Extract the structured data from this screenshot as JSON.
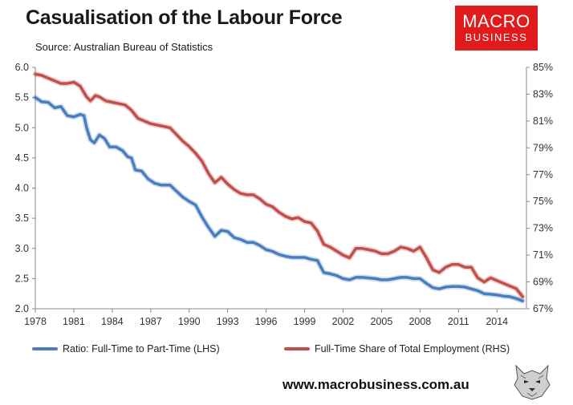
{
  "header": {
    "title": "Casualisation of the Labour Force",
    "source": "Source: Australian Bureau of Statistics"
  },
  "logo": {
    "line1": "MACRO",
    "line2": "BUSINESS",
    "color": "#e01b1b"
  },
  "footer": {
    "website": "www.macrobusiness.com.au",
    "mascot_icon": "wolf-icon"
  },
  "chart_data": {
    "type": "line",
    "title": "Casualisation of the Labour Force",
    "categories_label": "Year",
    "x_ticks": [
      "1978",
      "1981",
      "1984",
      "1987",
      "1990",
      "1993",
      "1996",
      "1999",
      "2002",
      "2005",
      "2008",
      "2011",
      "2014"
    ],
    "x_range": [
      1978,
      2016.3
    ],
    "y_left": {
      "range": [
        2.0,
        6.0
      ],
      "ticks": [
        "2.0",
        "2.5",
        "3.0",
        "3.5",
        "4.0",
        "4.5",
        "5.0",
        "5.5",
        "6.0"
      ]
    },
    "y_right": {
      "range": [
        67,
        85
      ],
      "ticks": [
        "67%",
        "69%",
        "71%",
        "73%",
        "75%",
        "77%",
        "79%",
        "81%",
        "83%",
        "85%"
      ]
    },
    "grid": false,
    "legend_position": "bottom",
    "series": [
      {
        "name": "Ratio: Full-Time to Part-Time (LHS)",
        "axis": "left",
        "color": "#4a7ebb",
        "points": [
          [
            1978.0,
            5.5
          ],
          [
            1978.5,
            5.43
          ],
          [
            1979.0,
            5.42
          ],
          [
            1979.5,
            5.33
          ],
          [
            1980.0,
            5.35
          ],
          [
            1980.5,
            5.2
          ],
          [
            1981.0,
            5.18
          ],
          [
            1981.5,
            5.22
          ],
          [
            1981.8,
            5.2
          ],
          [
            1982.0,
            5.0
          ],
          [
            1982.3,
            4.8
          ],
          [
            1982.6,
            4.75
          ],
          [
            1983.0,
            4.88
          ],
          [
            1983.4,
            4.82
          ],
          [
            1983.8,
            4.68
          ],
          [
            1984.3,
            4.68
          ],
          [
            1984.8,
            4.62
          ],
          [
            1985.2,
            4.52
          ],
          [
            1985.5,
            4.5
          ],
          [
            1985.8,
            4.3
          ],
          [
            1986.3,
            4.28
          ],
          [
            1986.8,
            4.15
          ],
          [
            1987.3,
            4.08
          ],
          [
            1987.8,
            4.05
          ],
          [
            1988.5,
            4.05
          ],
          [
            1989.0,
            3.95
          ],
          [
            1989.5,
            3.85
          ],
          [
            1990.0,
            3.78
          ],
          [
            1990.5,
            3.72
          ],
          [
            1991.0,
            3.52
          ],
          [
            1991.5,
            3.35
          ],
          [
            1992.0,
            3.2
          ],
          [
            1992.5,
            3.3
          ],
          [
            1993.0,
            3.28
          ],
          [
            1993.5,
            3.18
          ],
          [
            1994.0,
            3.15
          ],
          [
            1994.5,
            3.1
          ],
          [
            1995.0,
            3.1
          ],
          [
            1995.5,
            3.05
          ],
          [
            1996.0,
            2.98
          ],
          [
            1996.5,
            2.95
          ],
          [
            1997.0,
            2.9
          ],
          [
            1997.5,
            2.87
          ],
          [
            1998.0,
            2.85
          ],
          [
            1998.5,
            2.85
          ],
          [
            1999.0,
            2.85
          ],
          [
            1999.5,
            2.82
          ],
          [
            2000.0,
            2.8
          ],
          [
            2000.5,
            2.6
          ],
          [
            2001.0,
            2.58
          ],
          [
            2001.5,
            2.55
          ],
          [
            2002.0,
            2.5
          ],
          [
            2002.5,
            2.48
          ],
          [
            2003.0,
            2.52
          ],
          [
            2003.5,
            2.52
          ],
          [
            2004.0,
            2.51
          ],
          [
            2004.5,
            2.5
          ],
          [
            2005.0,
            2.48
          ],
          [
            2005.5,
            2.48
          ],
          [
            2006.0,
            2.5
          ],
          [
            2006.5,
            2.52
          ],
          [
            2007.0,
            2.52
          ],
          [
            2007.5,
            2.5
          ],
          [
            2008.0,
            2.5
          ],
          [
            2008.5,
            2.42
          ],
          [
            2009.0,
            2.35
          ],
          [
            2009.5,
            2.33
          ],
          [
            2010.0,
            2.36
          ],
          [
            2010.5,
            2.37
          ],
          [
            2011.0,
            2.37
          ],
          [
            2011.5,
            2.36
          ],
          [
            2012.0,
            2.33
          ],
          [
            2012.5,
            2.3
          ],
          [
            2013.0,
            2.25
          ],
          [
            2013.5,
            2.24
          ],
          [
            2014.0,
            2.23
          ],
          [
            2014.5,
            2.21
          ],
          [
            2015.0,
            2.2
          ],
          [
            2015.5,
            2.17
          ],
          [
            2016.0,
            2.13
          ]
        ]
      },
      {
        "name": "Full-Time Share of Total Employment (RHS)",
        "axis": "right",
        "color": "#c0504d",
        "points": [
          [
            1978.0,
            84.5
          ],
          [
            1978.5,
            84.4
          ],
          [
            1979.0,
            84.2
          ],
          [
            1979.5,
            84.0
          ],
          [
            1980.0,
            83.8
          ],
          [
            1980.5,
            83.8
          ],
          [
            1981.0,
            83.9
          ],
          [
            1981.5,
            83.6
          ],
          [
            1982.0,
            82.8
          ],
          [
            1982.3,
            82.5
          ],
          [
            1982.7,
            82.9
          ],
          [
            1983.0,
            82.8
          ],
          [
            1983.5,
            82.5
          ],
          [
            1984.0,
            82.4
          ],
          [
            1984.5,
            82.3
          ],
          [
            1985.0,
            82.2
          ],
          [
            1985.5,
            81.8
          ],
          [
            1986.0,
            81.2
          ],
          [
            1986.5,
            81.0
          ],
          [
            1987.0,
            80.8
          ],
          [
            1987.5,
            80.7
          ],
          [
            1988.0,
            80.6
          ],
          [
            1988.5,
            80.5
          ],
          [
            1989.0,
            80.0
          ],
          [
            1989.5,
            79.5
          ],
          [
            1990.0,
            79.1
          ],
          [
            1990.5,
            78.6
          ],
          [
            1991.0,
            78.0
          ],
          [
            1991.5,
            77.1
          ],
          [
            1992.0,
            76.4
          ],
          [
            1992.5,
            76.8
          ],
          [
            1993.0,
            76.3
          ],
          [
            1993.5,
            75.9
          ],
          [
            1994.0,
            75.6
          ],
          [
            1994.5,
            75.5
          ],
          [
            1995.0,
            75.5
          ],
          [
            1995.5,
            75.2
          ],
          [
            1996.0,
            74.8
          ],
          [
            1996.5,
            74.6
          ],
          [
            1997.0,
            74.2
          ],
          [
            1997.5,
            73.9
          ],
          [
            1998.0,
            73.7
          ],
          [
            1998.5,
            73.8
          ],
          [
            1999.0,
            73.5
          ],
          [
            1999.5,
            73.4
          ],
          [
            2000.0,
            72.8
          ],
          [
            2000.5,
            71.8
          ],
          [
            2001.0,
            71.6
          ],
          [
            2001.5,
            71.3
          ],
          [
            2002.0,
            71.0
          ],
          [
            2002.5,
            70.8
          ],
          [
            2003.0,
            71.5
          ],
          [
            2003.5,
            71.5
          ],
          [
            2004.0,
            71.4
          ],
          [
            2004.5,
            71.3
          ],
          [
            2005.0,
            71.1
          ],
          [
            2005.5,
            71.1
          ],
          [
            2006.0,
            71.3
          ],
          [
            2006.5,
            71.6
          ],
          [
            2007.0,
            71.5
          ],
          [
            2007.5,
            71.3
          ],
          [
            2008.0,
            71.6
          ],
          [
            2008.5,
            70.8
          ],
          [
            2009.0,
            69.9
          ],
          [
            2009.5,
            69.7
          ],
          [
            2010.0,
            70.1
          ],
          [
            2010.5,
            70.3
          ],
          [
            2011.0,
            70.3
          ],
          [
            2011.5,
            70.1
          ],
          [
            2012.0,
            70.1
          ],
          [
            2012.5,
            69.3
          ],
          [
            2013.0,
            69.0
          ],
          [
            2013.5,
            69.3
          ],
          [
            2014.0,
            69.1
          ],
          [
            2014.5,
            68.9
          ],
          [
            2015.0,
            68.7
          ],
          [
            2015.5,
            68.5
          ],
          [
            2016.0,
            67.9
          ]
        ]
      }
    ]
  }
}
